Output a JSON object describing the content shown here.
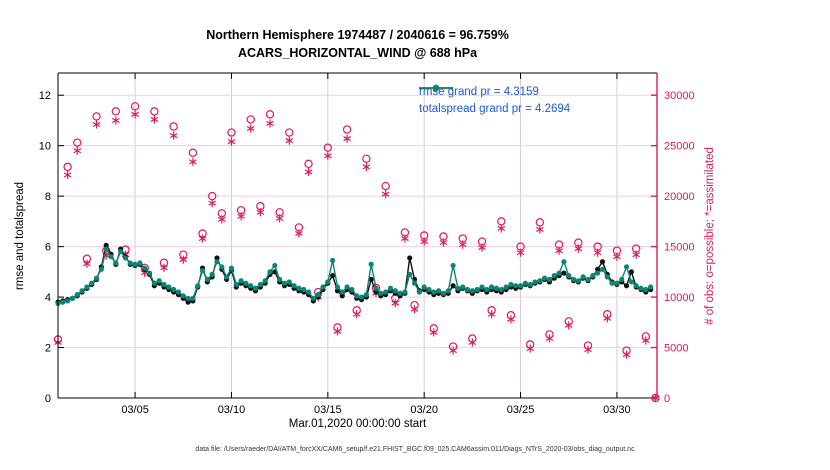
{
  "titles": {
    "line1": "Northern Hemisphere 1974487 / 2040616 = 96.759%",
    "line2": "ACARS_HORIZONTAL_WIND @ 688 hPa"
  },
  "footer_text": "data file: /Users/raeder/DAI/ATM_forcXX/CAM6_setup/f.e21.FHIST_BGC.f09_025.CAM6assim.011/Diags_NTrS_2020-03/obs_diag_output.nc",
  "colors": {
    "rmse_line": "#111111",
    "totalspread_line": "#0c8577",
    "obs_magenta": "#e0195e",
    "legend_text_blue": "#2056e0",
    "grid_horizontal_pink": "#f6cdd9",
    "grid_vertical_gray": "#d9ccd2",
    "axis_black": "#000000",
    "axis_right_magenta": "#e0195e"
  },
  "chart_data": {
    "type": "line",
    "title": "Northern Hemisphere 1974487 / 2040616 = 96.759% | ACARS_HORIZONTAL_WIND @ 688 hPa",
    "xlabel": "Mar.01,2020 00:00:00 start",
    "ylabel_left": "rmse and totalspread",
    "ylabel_right": "# of obs: o=possible; *=assimilated",
    "xlim_days": [
      1.0,
      32.08
    ],
    "ylim_left": [
      0,
      12.88
    ],
    "ylim_right": [
      0,
      32100
    ],
    "grid": true,
    "legend_position": "top-right-inside",
    "x_ticks": [
      {
        "day": 5,
        "label": "03/05"
      },
      {
        "day": 10,
        "label": "03/10"
      },
      {
        "day": 15,
        "label": "03/15"
      },
      {
        "day": 20,
        "label": "03/20"
      },
      {
        "day": 25,
        "label": "03/25"
      },
      {
        "day": 30,
        "label": "03/30"
      }
    ],
    "left_ticks": [
      0,
      2,
      4,
      6,
      8,
      10,
      12
    ],
    "right_ticks": [
      0,
      5000,
      10000,
      15000,
      20000,
      25000,
      30000
    ],
    "legend": [
      {
        "label": "rmse grand pr = 4.3159",
        "series": "rmse"
      },
      {
        "label": "totalspread grand pr = 4.2694",
        "series": "totalspread"
      }
    ],
    "series": {
      "x_start_day": 1.0,
      "x_step_days": 0.25,
      "rmse": [
        3.8,
        3.85,
        3.9,
        3.95,
        4.05,
        4.2,
        4.35,
        4.5,
        4.7,
        5.2,
        6.05,
        5.7,
        5.3,
        5.9,
        5.6,
        5.3,
        5.25,
        5.3,
        5.1,
        4.9,
        4.45,
        4.55,
        4.4,
        4.3,
        4.2,
        4.1,
        3.95,
        3.8,
        3.85,
        4.4,
        5.15,
        4.6,
        4.8,
        5.55,
        5.1,
        4.7,
        5.05,
        4.4,
        4.55,
        4.45,
        4.35,
        4.25,
        4.4,
        4.55,
        4.9,
        5.0,
        4.6,
        4.45,
        4.5,
        4.35,
        4.25,
        4.2,
        4.1,
        3.85,
        4.0,
        4.3,
        4.55,
        4.85,
        4.25,
        4.05,
        4.3,
        4.2,
        3.95,
        3.9,
        4.0,
        4.7,
        4.2,
        4.05,
        4.1,
        4.25,
        4.15,
        4.05,
        4.15,
        5.55,
        4.7,
        4.25,
        4.3,
        4.2,
        4.1,
        4.15,
        4.1,
        4.15,
        4.45,
        4.25,
        4.35,
        4.25,
        4.15,
        4.25,
        4.3,
        4.2,
        4.3,
        4.25,
        4.2,
        4.3,
        4.4,
        4.35,
        4.4,
        4.5,
        4.45,
        4.55,
        4.6,
        4.7,
        4.6,
        4.75,
        4.85,
        4.95,
        4.8,
        4.65,
        4.6,
        4.75,
        4.65,
        4.8,
        5.1,
        5.4,
        4.9,
        4.6,
        4.5,
        4.6,
        4.45,
        5.0,
        4.4,
        4.3,
        4.2,
        4.3
      ],
      "totalspread": [
        3.75,
        3.8,
        3.85,
        3.95,
        4.1,
        4.25,
        4.4,
        4.55,
        4.75,
        5.1,
        5.9,
        5.6,
        5.35,
        5.8,
        5.55,
        5.35,
        5.3,
        5.35,
        5.15,
        4.95,
        4.55,
        4.65,
        4.5,
        4.4,
        4.3,
        4.2,
        4.05,
        3.95,
        3.95,
        4.45,
        5.05,
        4.7,
        4.9,
        5.4,
        5.2,
        4.8,
        5.15,
        4.5,
        4.65,
        4.55,
        4.45,
        4.35,
        4.5,
        4.65,
        5.0,
        5.25,
        4.7,
        4.55,
        4.6,
        4.45,
        4.35,
        4.3,
        4.2,
        3.95,
        4.1,
        4.4,
        4.6,
        5.45,
        4.4,
        4.2,
        4.4,
        4.3,
        4.05,
        4.0,
        4.1,
        5.3,
        4.35,
        4.15,
        4.2,
        4.35,
        4.25,
        4.15,
        4.2,
        4.9,
        4.55,
        4.2,
        4.4,
        4.3,
        4.2,
        4.25,
        4.15,
        4.25,
        5.25,
        4.35,
        4.4,
        4.3,
        4.25,
        4.3,
        4.4,
        4.3,
        4.4,
        4.35,
        4.3,
        4.4,
        4.5,
        4.45,
        4.45,
        4.55,
        4.5,
        4.6,
        4.65,
        4.75,
        4.7,
        4.85,
        4.95,
        5.4,
        4.85,
        4.7,
        4.65,
        4.8,
        4.7,
        4.85,
        4.95,
        5.1,
        4.8,
        4.55,
        4.55,
        4.7,
        5.2,
        4.6,
        4.45,
        4.35,
        4.3,
        4.4
      ]
    },
    "obs_counts": {
      "x_start_day": 1.0,
      "x_step_days": 0.5,
      "possible": [
        5800,
        22900,
        25300,
        13800,
        27900,
        14600,
        28400,
        14700,
        28900,
        12900,
        28400,
        13400,
        26900,
        14200,
        24300,
        16300,
        20000,
        18300,
        26300,
        18600,
        27600,
        19000,
        28100,
        18400,
        26300,
        16900,
        23200,
        10500,
        24800,
        7000,
        26600,
        8700,
        23700,
        10900,
        21000,
        9900,
        16400,
        9200,
        16100,
        6900,
        16000,
        5100,
        15800,
        5900,
        15500,
        8700,
        17500,
        8200,
        15000,
        5300,
        17400,
        6300,
        15200,
        7600,
        15400,
        5200,
        15000,
        8300,
        14600,
        4700,
        14800,
        6100
      ],
      "assimilated": [
        5500,
        22100,
        24500,
        13300,
        27100,
        14100,
        27500,
        14200,
        28100,
        12400,
        27600,
        12900,
        26000,
        13700,
        23400,
        15800,
        19300,
        17700,
        25400,
        18000,
        26700,
        18400,
        27200,
        17800,
        25500,
        16300,
        22400,
        10000,
        24000,
        6600,
        25700,
        8300,
        22900,
        10400,
        20200,
        9400,
        15800,
        8800,
        15500,
        6500,
        15400,
        4700,
        15200,
        5500,
        14900,
        8300,
        16800,
        7800,
        14400,
        4900,
        16700,
        5900,
        14600,
        7200,
        14800,
        4800,
        14400,
        7900,
        14000,
        4300,
        14200,
        5700
      ],
      "final_point": {
        "day": 32.0,
        "possible": 0,
        "assimilated": 0
      }
    }
  }
}
